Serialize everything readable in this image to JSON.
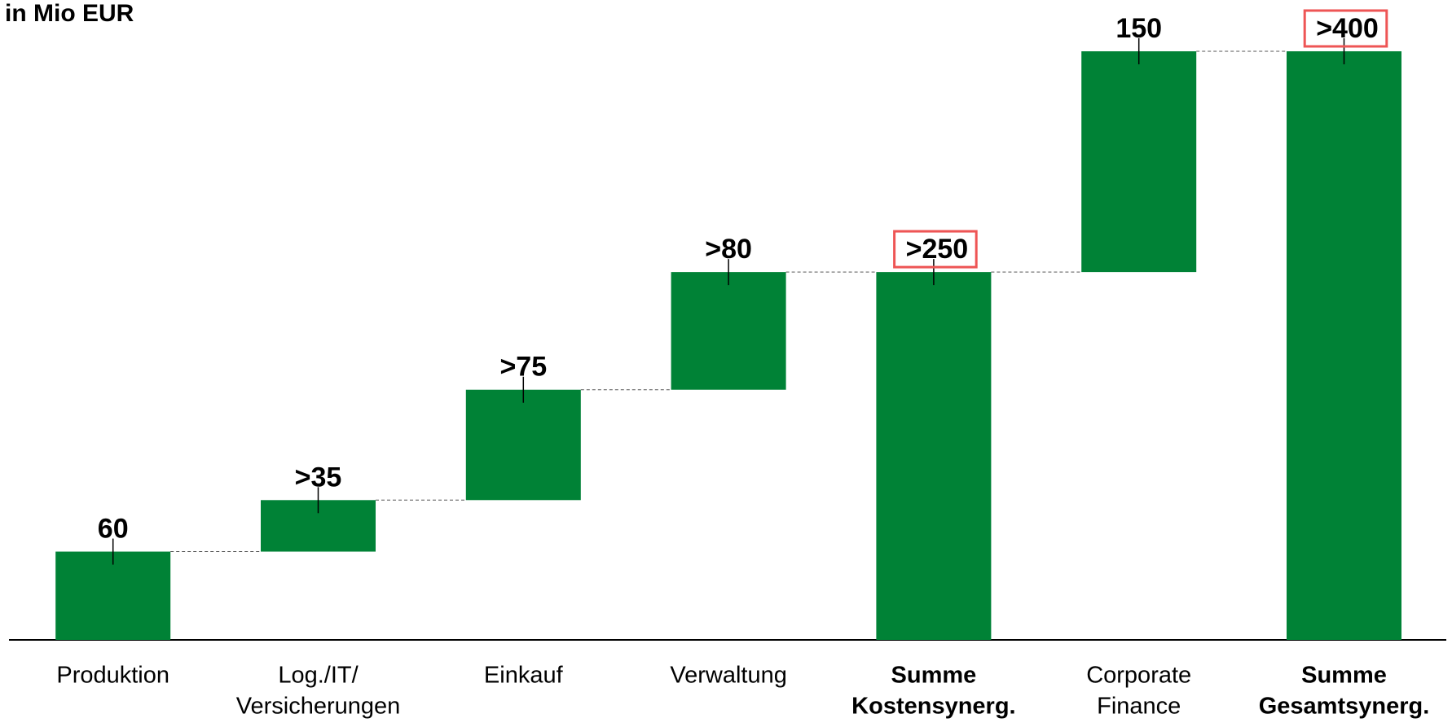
{
  "chart_data": {
    "type": "waterfall",
    "subtitle": "in Mio EUR",
    "categories": [
      [
        "Produktion"
      ],
      [
        "Log./IT/",
        "Versicherungen"
      ],
      [
        "Einkauf"
      ],
      [
        "Verwaltung"
      ],
      [
        "Summe",
        "Kostensynerg."
      ],
      [
        "Corporate",
        "Finance"
      ],
      [
        "Summe",
        "Gesamtsynerg."
      ]
    ],
    "measure": [
      "relative",
      "relative",
      "relative",
      "relative",
      "total",
      "relative",
      "total"
    ],
    "values": [
      60,
      35,
      75,
      80,
      250,
      150,
      400
    ],
    "value_labels": [
      "60",
      ">35",
      ">75",
      ">80",
      ">250",
      "150",
      ">400"
    ],
    "color": "#008236",
    "highlight_color": "#ee5555",
    "ylim": [
      0,
      400
    ]
  }
}
